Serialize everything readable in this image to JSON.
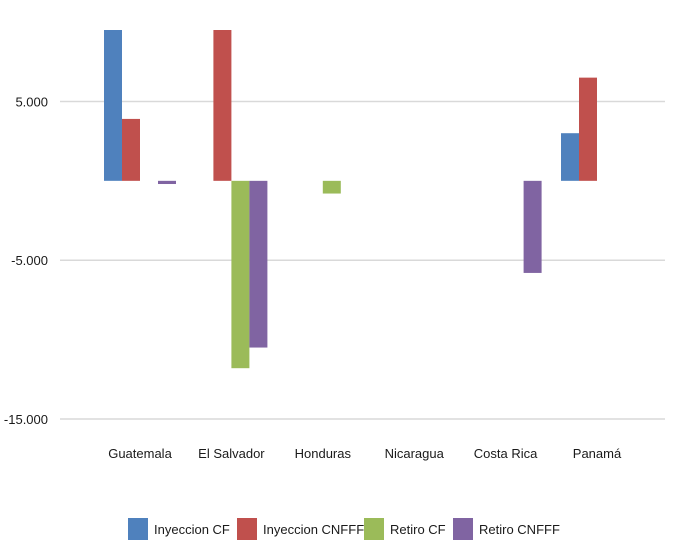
{
  "chart_data": {
    "type": "bar",
    "categories": [
      "Guatemala",
      "El Salvador",
      "Honduras",
      "Nicaragua",
      "Costa Rica",
      "Panamá"
    ],
    "series": [
      {
        "name": "Inyeccion CF",
        "color": "#4f81bd",
        "values": [
          9500,
          0,
          0,
          0,
          0,
          3000
        ]
      },
      {
        "name": "Inyeccion CNFFF",
        "color": "#c0504d",
        "values": [
          3900,
          9500,
          0,
          0,
          0,
          6500
        ]
      },
      {
        "name": "Retiro CF",
        "color": "#9bbb59",
        "values": [
          0,
          -11800,
          -800,
          0,
          0,
          0
        ]
      },
      {
        "name": "Retiro CNFFF",
        "color": "#8064a2",
        "values": [
          -200,
          -10500,
          0,
          0,
          -5800,
          0
        ]
      }
    ],
    "yticks": [
      5000,
      -5000,
      -15000
    ],
    "ytick_labels": [
      "5.000",
      "-5.000",
      "-15.000"
    ],
    "ylim": [
      -15000,
      9500
    ],
    "grid": true,
    "legend": "bottom"
  }
}
